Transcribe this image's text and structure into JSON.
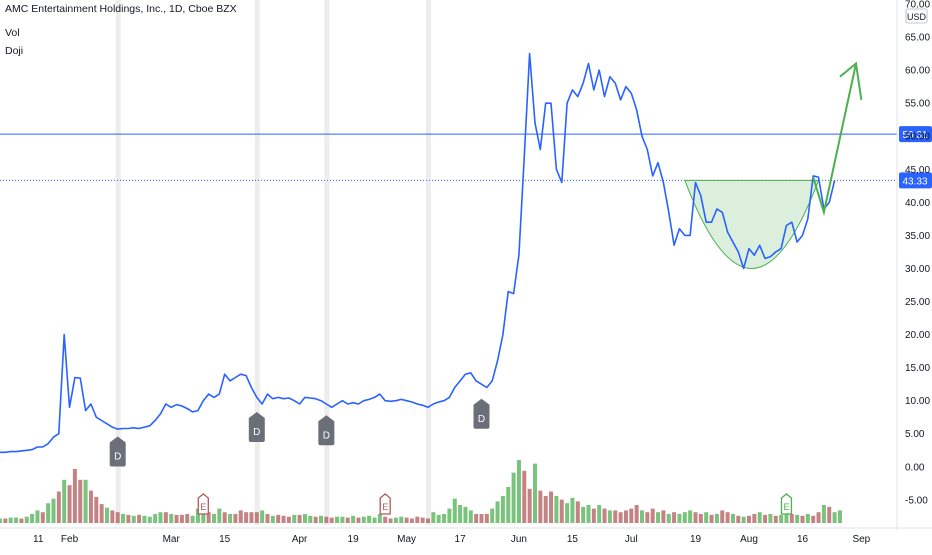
{
  "header": {
    "title": "AMC Entertainment Holdings, Inc., 1D, Cboe BZX",
    "indicators": [
      "Vol",
      "Doji"
    ]
  },
  "colors": {
    "price_line": "#2962ff",
    "price_label_bg": "#2962ff",
    "vol_up": "#4caf50",
    "vol_down": "#b05a5a",
    "cup": "#4caf50",
    "doji_marker": "#6b6f79",
    "highlight_bands": "#e8e8e8"
  },
  "chart_data": {
    "type": "line",
    "title": "AMC Entertainment Holdings, Inc., 1D, Cboe BZX",
    "currency_label": "USD",
    "ylim": [
      -8.5,
      71
    ],
    "y_ticks": [
      -5,
      0,
      5,
      10,
      15,
      20,
      25,
      30,
      35,
      40,
      45,
      50,
      55,
      60,
      65,
      70
    ],
    "y_tick_labels": [
      "-5.00",
      "0.00",
      "5.00",
      "10.00",
      "15.00",
      "20.00",
      "25.00",
      "30.00",
      "35.00",
      "40.00",
      "45.00",
      "50.00",
      "55.00",
      "60.00",
      "65.00",
      "70.00"
    ],
    "x_ticks": [
      {
        "x": 0,
        "label": "11"
      },
      {
        "x": 13,
        "label": "Feb"
      },
      {
        "x": 32,
        "label": "Mar"
      },
      {
        "x": 42,
        "label": "15"
      },
      {
        "x": 56,
        "label": "Apr"
      },
      {
        "x": 66,
        "label": "19"
      },
      {
        "x": 76,
        "label": "May"
      },
      {
        "x": 86,
        "label": "17"
      },
      {
        "x": 97,
        "label": "Jun"
      },
      {
        "x": 107,
        "label": "15"
      },
      {
        "x": 118,
        "label": "Jul"
      },
      {
        "x": 130,
        "label": "19"
      },
      {
        "x": 140,
        "label": "Aug"
      },
      {
        "x": 150,
        "label": "16"
      },
      {
        "x": 161,
        "label": "Sep"
      }
    ],
    "series": [
      {
        "values": [
          2.2,
          2.2,
          2.3,
          2.3,
          2.4,
          2.5,
          2.6,
          3.0,
          3.0,
          3.5,
          4.5,
          5.0,
          20.0,
          9.0,
          13.5,
          13.4,
          8.5,
          9.5,
          7.5,
          7.0,
          6.5,
          6.0,
          5.7,
          5.8,
          5.8,
          5.9,
          5.8,
          6.0,
          6.2,
          7.0,
          8.0,
          9.5,
          9.0,
          9.4,
          9.2,
          8.8,
          8.3,
          8.5,
          10.0,
          11.0,
          10.5,
          11.0,
          14.0,
          13.0,
          13.5,
          14.0,
          13.8,
          12.0,
          10.5,
          9.5,
          11.0,
          10.3,
          10.5,
          10.3,
          10.4,
          10.0,
          9.5,
          10.5,
          10.4,
          10.3,
          10.0,
          9.5,
          9.0,
          9.5,
          10.0,
          9.5,
          9.7,
          9.5,
          10.0,
          10.2,
          10.5,
          11.0,
          10.0,
          9.9,
          10.0,
          10.2,
          10.0,
          9.8,
          9.5,
          9.3,
          9.0,
          9.5,
          9.8,
          10.0,
          10.5,
          12.0,
          13.0,
          14.0,
          14.2,
          13.0,
          12.5,
          12.0,
          13.0,
          16.0,
          20.0,
          26.5,
          26.2,
          32.0,
          47.0,
          62.5,
          52.0,
          48.0,
          55.0,
          55.0,
          45.0,
          43.0,
          55.0,
          57.0,
          56.0,
          58.0,
          61.0,
          57.0,
          60.0,
          56.0,
          59.0,
          58.0,
          55.5,
          57.5,
          56.5,
          54.0,
          50.0,
          48.0,
          44.0,
          46.0,
          43.0,
          38.5,
          33.5,
          36.0,
          35.0,
          35.0,
          43.0,
          41.0,
          37.0,
          37.0,
          39.0,
          38.5,
          35.5,
          34.0,
          32.5,
          30.0,
          33.0,
          32.0,
          33.5,
          31.5,
          31.8,
          32.5,
          33.0,
          36.5,
          37.0,
          34.0,
          35.0,
          37.5,
          44.0,
          43.8,
          39.0,
          40.0,
          43.3
        ]
      }
    ],
    "volume_relative": [
      {
        "v": 0.05,
        "up": true
      },
      {
        "v": 0.05,
        "up": false
      },
      {
        "v": 0.06,
        "up": true
      },
      {
        "v": 0.06,
        "up": true
      },
      {
        "v": 0.05,
        "up": false
      },
      {
        "v": 0.07,
        "up": true
      },
      {
        "v": 0.1,
        "up": true
      },
      {
        "v": 0.14,
        "up": true
      },
      {
        "v": 0.12,
        "up": false
      },
      {
        "v": 0.22,
        "up": true
      },
      {
        "v": 0.27,
        "up": true
      },
      {
        "v": 0.35,
        "up": false
      },
      {
        "v": 0.48,
        "up": true
      },
      {
        "v": 0.42,
        "up": false
      },
      {
        "v": 0.6,
        "up": false
      },
      {
        "v": 0.48,
        "up": false
      },
      {
        "v": 0.48,
        "up": true
      },
      {
        "v": 0.36,
        "up": false
      },
      {
        "v": 0.29,
        "up": false
      },
      {
        "v": 0.21,
        "up": false
      },
      {
        "v": 0.17,
        "up": true
      },
      {
        "v": 0.14,
        "up": false
      },
      {
        "v": 0.12,
        "up": false
      },
      {
        "v": 0.1,
        "up": true
      },
      {
        "v": 0.09,
        "up": false
      },
      {
        "v": 0.08,
        "up": true
      },
      {
        "v": 0.09,
        "up": false
      },
      {
        "v": 0.08,
        "up": true
      },
      {
        "v": 0.07,
        "up": true
      },
      {
        "v": 0.1,
        "up": true
      },
      {
        "v": 0.12,
        "up": true
      },
      {
        "v": 0.12,
        "up": false
      },
      {
        "v": 0.1,
        "up": true
      },
      {
        "v": 0.09,
        "up": false
      },
      {
        "v": 0.09,
        "up": false
      },
      {
        "v": 0.1,
        "up": false
      },
      {
        "v": 0.08,
        "up": true
      },
      {
        "v": 0.16,
        "up": true
      },
      {
        "v": 0.12,
        "up": true
      },
      {
        "v": 0.12,
        "up": false
      },
      {
        "v": 0.1,
        "up": true
      },
      {
        "v": 0.16,
        "up": true
      },
      {
        "v": 0.12,
        "up": false
      },
      {
        "v": 0.1,
        "up": true
      },
      {
        "v": 0.1,
        "up": false
      },
      {
        "v": 0.14,
        "up": false
      },
      {
        "v": 0.12,
        "up": false
      },
      {
        "v": 0.12,
        "up": false
      },
      {
        "v": 0.12,
        "up": false
      },
      {
        "v": 0.14,
        "up": true
      },
      {
        "v": 0.1,
        "up": false
      },
      {
        "v": 0.08,
        "up": true
      },
      {
        "v": 0.09,
        "up": false
      },
      {
        "v": 0.08,
        "up": false
      },
      {
        "v": 0.07,
        "up": false
      },
      {
        "v": 0.09,
        "up": true
      },
      {
        "v": 0.09,
        "up": false
      },
      {
        "v": 0.1,
        "up": true
      },
      {
        "v": 0.08,
        "up": true
      },
      {
        "v": 0.07,
        "up": false
      },
      {
        "v": 0.08,
        "up": true
      },
      {
        "v": 0.07,
        "up": false
      },
      {
        "v": 0.06,
        "up": false
      },
      {
        "v": 0.07,
        "up": true
      },
      {
        "v": 0.07,
        "up": true
      },
      {
        "v": 0.06,
        "up": false
      },
      {
        "v": 0.08,
        "up": true
      },
      {
        "v": 0.06,
        "up": false
      },
      {
        "v": 0.07,
        "up": true
      },
      {
        "v": 0.08,
        "up": true
      },
      {
        "v": 0.06,
        "up": true
      },
      {
        "v": 0.1,
        "up": true
      },
      {
        "v": 0.07,
        "up": false
      },
      {
        "v": 0.05,
        "up": false
      },
      {
        "v": 0.06,
        "up": true
      },
      {
        "v": 0.07,
        "up": true
      },
      {
        "v": 0.06,
        "up": false
      },
      {
        "v": 0.05,
        "up": false
      },
      {
        "v": 0.07,
        "up": false
      },
      {
        "v": 0.06,
        "up": false
      },
      {
        "v": 0.05,
        "up": false
      },
      {
        "v": 0.12,
        "up": true
      },
      {
        "v": 0.09,
        "up": true
      },
      {
        "v": 0.1,
        "up": true
      },
      {
        "v": 0.16,
        "up": true
      },
      {
        "v": 0.27,
        "up": true
      },
      {
        "v": 0.2,
        "up": true
      },
      {
        "v": 0.18,
        "up": true
      },
      {
        "v": 0.14,
        "up": true
      },
      {
        "v": 0.1,
        "up": false
      },
      {
        "v": 0.1,
        "up": false
      },
      {
        "v": 0.1,
        "up": false
      },
      {
        "v": 0.16,
        "up": true
      },
      {
        "v": 0.24,
        "up": true
      },
      {
        "v": 0.3,
        "up": true
      },
      {
        "v": 0.4,
        "up": true
      },
      {
        "v": 0.56,
        "up": true
      },
      {
        "v": 0.7,
        "up": true
      },
      {
        "v": 0.58,
        "up": false
      },
      {
        "v": 0.38,
        "up": false
      },
      {
        "v": 0.66,
        "up": true
      },
      {
        "v": 0.36,
        "up": false
      },
      {
        "v": 0.3,
        "up": false
      },
      {
        "v": 0.35,
        "up": false
      },
      {
        "v": 0.3,
        "up": true
      },
      {
        "v": 0.26,
        "up": false
      },
      {
        "v": 0.22,
        "up": true
      },
      {
        "v": 0.28,
        "up": true
      },
      {
        "v": 0.24,
        "up": false
      },
      {
        "v": 0.18,
        "up": true
      },
      {
        "v": 0.2,
        "up": true
      },
      {
        "v": 0.16,
        "up": false
      },
      {
        "v": 0.2,
        "up": true
      },
      {
        "v": 0.16,
        "up": false
      },
      {
        "v": 0.14,
        "up": true
      },
      {
        "v": 0.14,
        "up": false
      },
      {
        "v": 0.12,
        "up": false
      },
      {
        "v": 0.14,
        "up": false
      },
      {
        "v": 0.16,
        "up": false
      },
      {
        "v": 0.2,
        "up": false
      },
      {
        "v": 0.14,
        "up": true
      },
      {
        "v": 0.12,
        "up": false
      },
      {
        "v": 0.16,
        "up": false
      },
      {
        "v": 0.12,
        "up": true
      },
      {
        "v": 0.14,
        "up": false
      },
      {
        "v": 0.1,
        "up": true
      },
      {
        "v": 0.12,
        "up": false
      },
      {
        "v": 0.1,
        "up": true
      },
      {
        "v": 0.12,
        "up": true
      },
      {
        "v": 0.14,
        "up": true
      },
      {
        "v": 0.12,
        "up": false
      },
      {
        "v": 0.1,
        "up": false
      },
      {
        "v": 0.12,
        "up": true
      },
      {
        "v": 0.09,
        "up": false
      },
      {
        "v": 0.1,
        "up": true
      },
      {
        "v": 0.14,
        "up": false
      },
      {
        "v": 0.12,
        "up": false
      },
      {
        "v": 0.1,
        "up": true
      },
      {
        "v": 0.08,
        "up": false
      },
      {
        "v": 0.07,
        "up": true
      },
      {
        "v": 0.08,
        "up": false
      },
      {
        "v": 0.1,
        "up": false
      },
      {
        "v": 0.12,
        "up": true
      },
      {
        "v": 0.09,
        "up": false
      },
      {
        "v": 0.1,
        "up": true
      },
      {
        "v": 0.08,
        "up": false
      },
      {
        "v": 0.09,
        "up": true
      },
      {
        "v": 0.12,
        "up": true
      },
      {
        "v": 0.1,
        "up": false
      },
      {
        "v": 0.09,
        "up": true
      },
      {
        "v": 0.08,
        "up": false
      },
      {
        "v": 0.1,
        "up": true
      },
      {
        "v": 0.08,
        "up": false
      },
      {
        "v": 0.12,
        "up": false
      },
      {
        "v": 0.2,
        "up": true
      },
      {
        "v": 0.18,
        "up": false
      },
      {
        "v": 0.12,
        "up": true
      },
      {
        "v": 0.14,
        "up": true
      }
    ],
    "horizontal_lines": [
      {
        "value": 50.31,
        "label": "50.31",
        "style": "solid"
      },
      {
        "value": 43.33,
        "label": "43.33",
        "style": "dotted"
      }
    ],
    "doji_markers": [
      {
        "x": 22,
        "value": 5.8,
        "label": "D"
      },
      {
        "x": 48,
        "value": 9.5,
        "label": "D"
      },
      {
        "x": 61,
        "value": 9.0,
        "label": "D"
      },
      {
        "x": 90,
        "value": 11.5,
        "label": "D"
      }
    ],
    "earnings_markers": [
      {
        "x": 38,
        "label": "E",
        "color": "#b05a5a"
      },
      {
        "x": 72,
        "label": "E",
        "color": "#b05a5a"
      },
      {
        "x": 147,
        "label": "E",
        "color": "#4caf50"
      }
    ],
    "highlight_days": [
      22,
      48,
      61,
      80
    ],
    "annotations": {
      "cup": {
        "x_start": 128,
        "x_end": 153,
        "rim_value": 43.33,
        "bottom_value": 30.0
      },
      "arrow_segments": [
        [
          152,
          43.8
        ],
        [
          154,
          38.5
        ],
        [
          160,
          61.0
        ]
      ],
      "arrow_head": {
        "tip": [
          160,
          61.0
        ],
        "left": [
          157,
          59.0
        ],
        "right": [
          161,
          55.5
        ]
      }
    },
    "grid": false,
    "legend": "none"
  }
}
